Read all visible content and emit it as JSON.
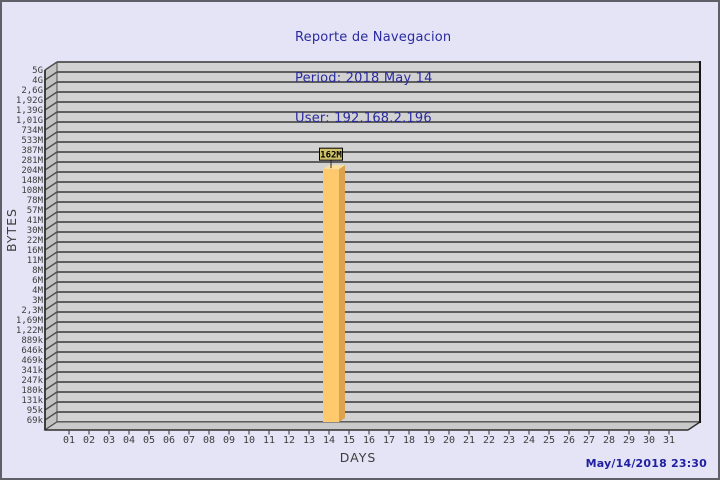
{
  "header": {
    "title": "Reporte de Navegacion",
    "period": "Period: 2018 May 14",
    "user": "User: 192.168.2.196"
  },
  "footer": {
    "timestamp": "May/14/2018 23:30"
  },
  "palette": {
    "page_bg": "#e4e4f6",
    "window_border": "#5f5f6a",
    "title_color": "#2a2aa0",
    "timestamp_color": "#2020a0",
    "band_fill": "#d2d2d2",
    "band_line": "#4e4e4e",
    "wall_fill": "#c2c2c2",
    "floor_fill": "#c9c9c9",
    "axis_line": "#2f2f2f",
    "tick_text": "#3d3d3d",
    "bar_front": "#ffc96e",
    "bar_side": "#dda24d",
    "bar_top": "#fcdf9b",
    "label_box_bg": "#cfc167",
    "label_box_border": "#000000"
  },
  "chart_data": {
    "type": "bar",
    "title": "Reporte de Navegacion",
    "xlabel": "DAYS",
    "ylabel": "BYTES",
    "y_scale": "log",
    "ylim": [
      "69k",
      "5G"
    ],
    "grid": "horizontal-bands",
    "legend": "none",
    "y_tick_labels": [
      "5G",
      "4G",
      "2,6G",
      "1,92G",
      "1,39G",
      "1,01G",
      "734M",
      "533M",
      "387M",
      "281M",
      "204M",
      "148M",
      "108M",
      "78M",
      "57M",
      "41M",
      "30M",
      "22M",
      "16M",
      "11M",
      "8M",
      "6M",
      "4M",
      "3M",
      "2,3M",
      "1,69M",
      "1,22M",
      "889k",
      "646k",
      "469k",
      "341k",
      "247k",
      "180k",
      "131k",
      "95k",
      "69k"
    ],
    "categories": [
      "01",
      "02",
      "03",
      "04",
      "05",
      "06",
      "07",
      "08",
      "09",
      "10",
      "11",
      "12",
      "13",
      "14",
      "15",
      "16",
      "17",
      "18",
      "19",
      "20",
      "21",
      "22",
      "23",
      "24",
      "25",
      "26",
      "27",
      "28",
      "29",
      "30",
      "31"
    ],
    "values": [
      0,
      0,
      0,
      0,
      0,
      0,
      0,
      0,
      0,
      0,
      0,
      0,
      0,
      162000000,
      0,
      0,
      0,
      0,
      0,
      0,
      0,
      0,
      0,
      0,
      0,
      0,
      0,
      0,
      0,
      0,
      0
    ],
    "bar": {
      "category": "14",
      "value_label": "162M",
      "value_bytes": 162000000
    }
  }
}
